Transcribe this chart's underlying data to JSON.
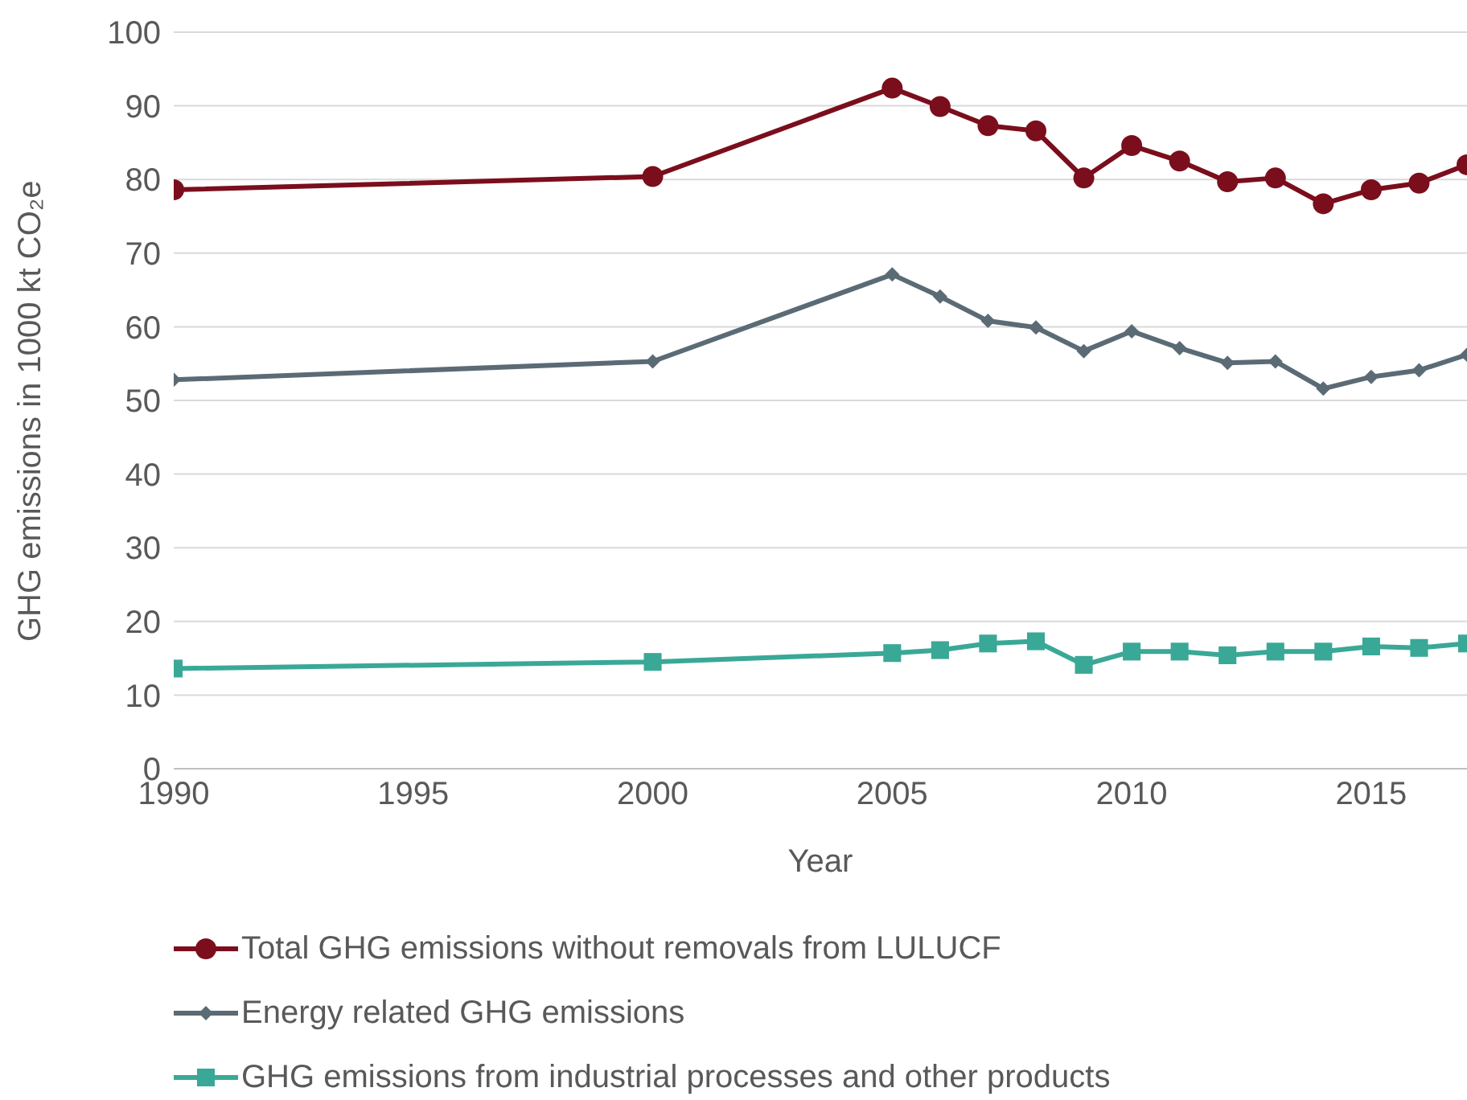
{
  "chart_data": {
    "type": "line",
    "xlabel": "Year",
    "ylabel": "GHG emissions in 1000 kt CO₂e",
    "x": [
      1990,
      2000,
      2005,
      2006,
      2007,
      2008,
      2009,
      2010,
      2011,
      2012,
      2013,
      2014,
      2015,
      2016,
      2017
    ],
    "series": [
      {
        "name": "Total GHG emissions without removals from LULUCF",
        "color": "#7b0e1c",
        "marker": "circle",
        "values": [
          78.6,
          80.4,
          92.4,
          89.9,
          87.3,
          86.6,
          80.2,
          84.6,
          82.5,
          79.7,
          80.2,
          76.7,
          78.6,
          79.5,
          82.0
        ]
      },
      {
        "name": "Energy related GHG emissions",
        "color": "#5b6b75",
        "marker": "diamond",
        "values": [
          52.8,
          55.3,
          67.1,
          64.1,
          60.8,
          59.9,
          56.7,
          59.4,
          57.1,
          55.1,
          55.3,
          51.6,
          53.2,
          54.1,
          56.2
        ]
      },
      {
        "name": "GHG emissions from industrial processes and other products",
        "color": "#3aa897",
        "marker": "square",
        "values": [
          13.6,
          14.5,
          15.7,
          16.1,
          17.0,
          17.3,
          14.1,
          15.9,
          15.9,
          15.4,
          15.9,
          15.9,
          16.6,
          16.4,
          17.0
        ]
      }
    ],
    "xlim": [
      1990,
      2017
    ],
    "xticks": [
      1990,
      1995,
      2000,
      2005,
      2010,
      2015
    ],
    "ylim": [
      0,
      100
    ],
    "yticks": [
      0,
      10,
      20,
      30,
      40,
      50,
      60,
      70,
      80,
      90,
      100
    ],
    "grid": "y",
    "legend": "bottom",
    "line_style": "solid"
  }
}
